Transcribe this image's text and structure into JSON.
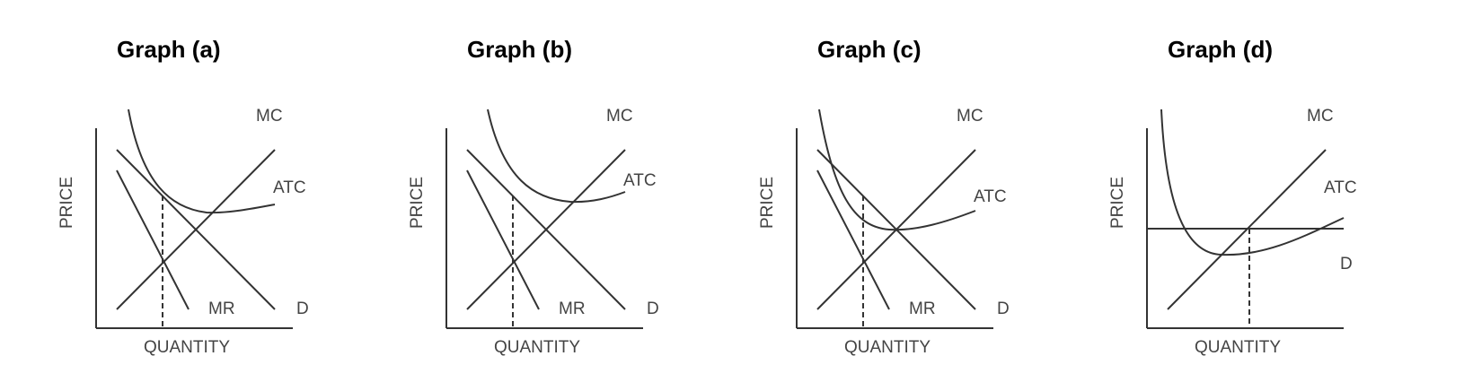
{
  "graphs": [
    {
      "title": "Graph (a)",
      "y_axis": "PRICE",
      "x_axis": "QUANTITY",
      "curves": {
        "mc": "MC",
        "atc": "ATC",
        "mr": "MR",
        "d": "D"
      }
    },
    {
      "title": "Graph (b)",
      "y_axis": "PRICE",
      "x_axis": "QUANTITY",
      "curves": {
        "mc": "MC",
        "atc": "ATC",
        "mr": "MR",
        "d": "D"
      }
    },
    {
      "title": "Graph (c)",
      "y_axis": "PRICE",
      "x_axis": "QUANTITY",
      "curves": {
        "mc": "MC",
        "atc": "ATC",
        "mr": "MR",
        "d": "D"
      }
    },
    {
      "title": "Graph (d)",
      "y_axis": "PRICE",
      "x_axis": "QUANTITY",
      "curves": {
        "mc": "MC",
        "atc": "ATC",
        "d": "D"
      }
    }
  ]
}
